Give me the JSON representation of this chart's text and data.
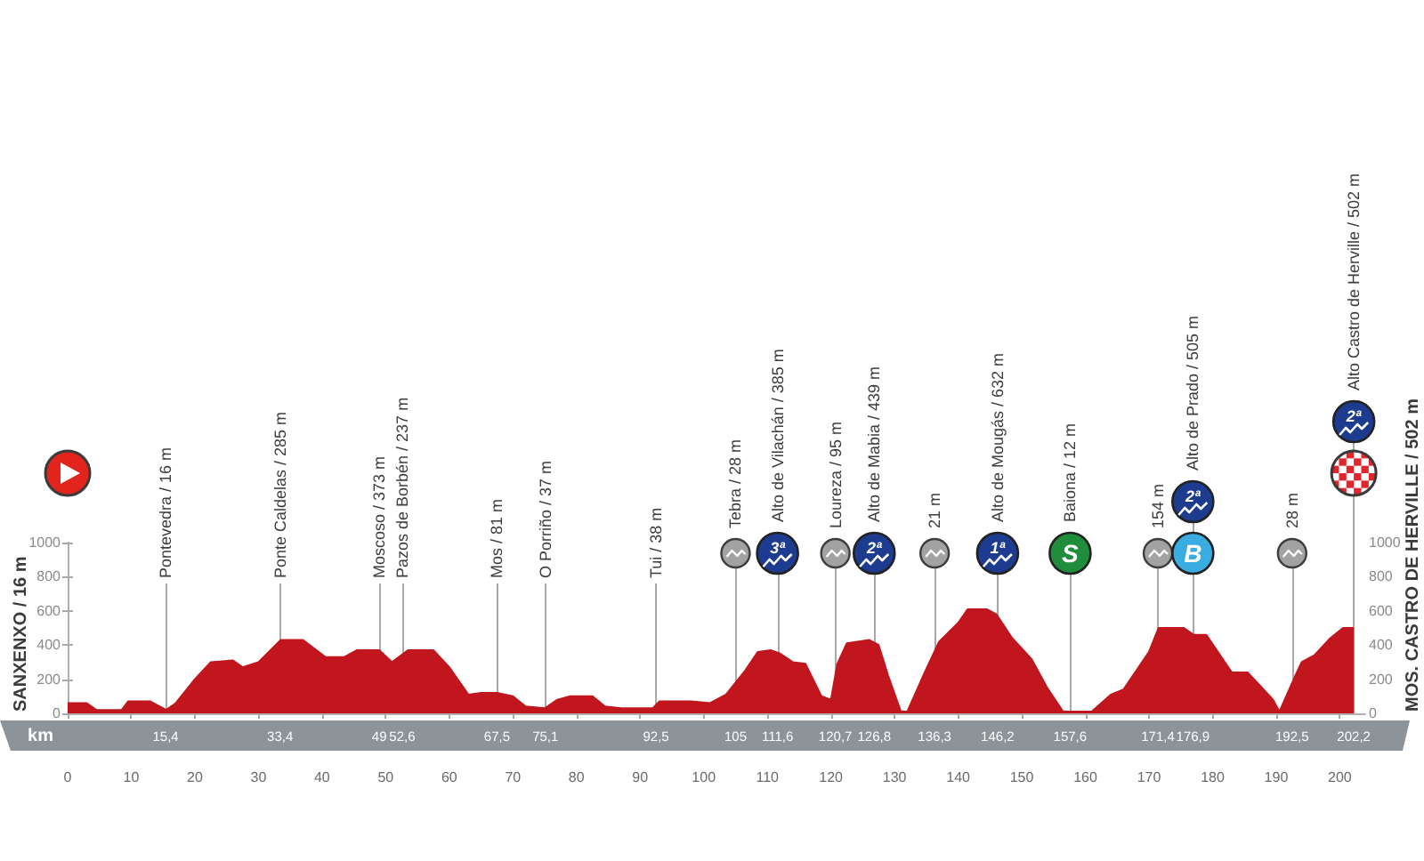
{
  "chart_data": {
    "type": "area",
    "x2label": "km",
    "color": "#c1161d",
    "x": [
      0,
      3,
      4.5,
      8.5,
      9.5,
      13,
      15.5,
      17,
      20,
      22.5,
      26,
      27.5,
      30,
      33.5,
      37,
      40.5,
      43.5,
      45.5,
      49,
      51,
      53.5,
      57.5,
      60,
      63,
      65,
      67.5,
      70,
      72,
      75,
      77,
      79,
      82.5,
      84.5,
      87,
      92,
      93,
      98,
      101,
      103.5,
      106.5,
      108.5,
      110.5,
      112,
      114,
      116,
      118.5,
      120,
      121,
      122.5,
      126,
      127.5,
      129,
      131,
      132,
      134.5,
      137,
      140,
      141.5,
      144.5,
      146,
      148.5,
      151.5,
      154,
      156.5,
      161,
      164,
      166,
      168,
      170,
      171.5,
      175.5,
      177,
      179,
      183,
      185.5,
      187.5,
      189.5,
      190.5,
      193,
      194,
      196,
      198.5,
      200.5,
      202.2
    ],
    "values": [
      60,
      60,
      20,
      20,
      70,
      70,
      20,
      60,
      200,
      300,
      310,
      270,
      300,
      430,
      430,
      330,
      330,
      370,
      370,
      300,
      370,
      370,
      270,
      110,
      120,
      120,
      100,
      40,
      30,
      80,
      100,
      100,
      40,
      30,
      30,
      70,
      70,
      60,
      110,
      250,
      360,
      370,
      350,
      300,
      290,
      100,
      80,
      290,
      410,
      430,
      400,
      220,
      10,
      10,
      220,
      420,
      530,
      610,
      610,
      580,
      440,
      320,
      150,
      10,
      10,
      110,
      140,
      250,
      360,
      500,
      500,
      460,
      460,
      240,
      240,
      160,
      80,
      10,
      220,
      300,
      340,
      440,
      500,
      500
    ],
    "xlim": [
      0,
      204
    ],
    "xticks": [
      0,
      10,
      20,
      30,
      40,
      50,
      60,
      70,
      80,
      90,
      100,
      110,
      120,
      130,
      140,
      150,
      160,
      170,
      180,
      190,
      200
    ],
    "x2lim": [
      0,
      204
    ],
    "x2ticks": [
      {
        "value": 15.4,
        "label": "15,4"
      },
      {
        "value": 33.4,
        "label": "33,4"
      },
      49,
      {
        "value": 52.6,
        "label": "52,6"
      },
      {
        "value": 67.5,
        "label": "67,5"
      },
      {
        "value": 75.1,
        "label": "75,1"
      },
      {
        "value": 92.5,
        "label": "92,5"
      },
      105,
      {
        "value": 111.6,
        "label": "111,6"
      },
      {
        "value": 120.7,
        "label": "120,7"
      },
      {
        "value": 126.8,
        "label": "126,8"
      },
      {
        "value": 136.3,
        "label": "136,3"
      },
      {
        "value": 146.2,
        "label": "146,2"
      },
      {
        "value": 157.6,
        "label": "157,6"
      },
      {
        "value": 171.4,
        "label": "171,4"
      },
      {
        "value": 176.9,
        "label": "176,9"
      },
      {
        "value": 192.5,
        "label": "192,5"
      },
      {
        "value": 202.2,
        "label": "202,2"
      }
    ],
    "ylim": [
      0,
      1000
    ],
    "yticks": [
      0,
      200,
      400,
      600,
      800,
      1000
    ],
    "y2lim": [
      0,
      1000
    ],
    "y2ticks": [
      0,
      200,
      400,
      600,
      800,
      1000
    ],
    "ref_lines": [
      {
        "axis": "x",
        "value": 15.4,
        "label": "Pontevedra / 16 m"
      },
      {
        "axis": "x",
        "value": 33.4,
        "label": "Ponte Caldelas / 285 m"
      },
      {
        "axis": "x",
        "value": 49,
        "label": "Moscoso / 373 m"
      },
      {
        "axis": "x",
        "value": 52.6,
        "label": "Pazos de Borbén / 237 m"
      },
      {
        "axis": "x",
        "value": 67.5,
        "label": "Mos / 81 m"
      },
      {
        "axis": "x",
        "value": 75.1,
        "label": "O Porriño / 37 m"
      },
      {
        "axis": "x",
        "value": 92.5,
        "label": "Tui / 38 m"
      },
      {
        "axis": "x",
        "value": 105,
        "label": "Tebra / 28 m"
      },
      {
        "axis": "x",
        "value": 111.6,
        "label": "Alto de Vilachán / 385 m"
      },
      {
        "axis": "x",
        "value": 120.7,
        "label": "Loureza / 95 m"
      },
      {
        "axis": "x",
        "value": 126.8,
        "label": "Alto de Mabia / 439 m"
      },
      {
        "axis": "x",
        "value": 136.3,
        "label": "21 m"
      },
      {
        "axis": "x",
        "value": 146.2,
        "label": "Alto de Mougás / 632 m"
      },
      {
        "axis": "x",
        "value": 157.6,
        "label": "Baiona / 12 m"
      },
      {
        "axis": "x",
        "value": 171.4,
        "label": "154 m"
      },
      {
        "axis": "x",
        "value": 176.9,
        "label": "Alto de Prado / 505 m"
      },
      {
        "axis": "x",
        "value": 192.5,
        "label": "28 m"
      },
      {
        "axis": "x",
        "value": 202.2,
        "label": "Alto Castro de Herville / 502 m"
      }
    ],
    "annotations": [
      {
        "text": "3ª",
        "x": 111.6
      },
      {
        "text": "2ª",
        "x": 126.8
      },
      {
        "text": "1ª",
        "x": 146.2
      },
      {
        "text": "S",
        "x": 157.6
      },
      {
        "text": "B",
        "x": 176.9
      },
      {
        "text": "2ª",
        "x": 176.9
      },
      {
        "text": "2ª",
        "x": 202.2
      },
      "SANXENXO / 16 m",
      "MOS. CASTRO DE HERVILLE / 502 m"
    ]
  }
}
